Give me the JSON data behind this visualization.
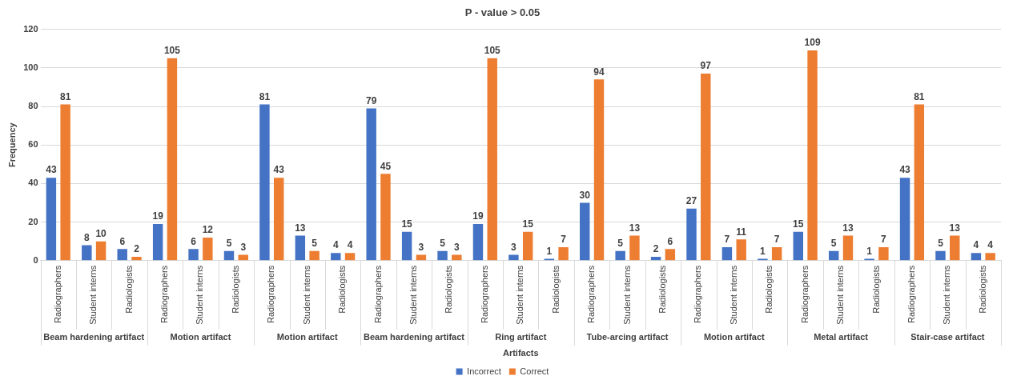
{
  "chart_data": {
    "type": "bar",
    "title": "P - value > 0.05",
    "xlabel": "Artifacts",
    "ylabel": "Frequency",
    "categories": [
      "Radiographers",
      "Student interns",
      "Radiologists",
      "Radiographers",
      "Student interns",
      "Radiologists",
      "Radiographers",
      "Student interns",
      "Radiologists",
      "Radiographers",
      "Student interns",
      "Radiologists",
      "Radiographers",
      "Student interns",
      "Radiologists",
      "Radiographers",
      "Student interns",
      "Radiologists",
      "Radiographers",
      "Student interns",
      "Radiologists",
      "Radiographers",
      "Student interns",
      "Radiologists",
      "Radiographers",
      "Student interns",
      "Radiologists"
    ],
    "series": [
      {
        "name": "Incorrect",
        "color": "#4472c4",
        "values": [
          43,
          8,
          6,
          19,
          6,
          5,
          81,
          13,
          4,
          79,
          15,
          5,
          19,
          3,
          1,
          30,
          5,
          2,
          27,
          7,
          1,
          15,
          5,
          1,
          43,
          5,
          4
        ]
      },
      {
        "name": "Correct",
        "color": "#ed7d31",
        "values": [
          81,
          10,
          2,
          105,
          12,
          3,
          43,
          5,
          4,
          45,
          3,
          3,
          105,
          15,
          7,
          94,
          13,
          6,
          97,
          11,
          7,
          109,
          13,
          7,
          81,
          13,
          4
        ]
      }
    ],
    "annotations": [
      "Beam hardening artifact",
      "Motion artifact",
      "Motion artifact",
      "Beam hardening artifact",
      "Ring artifact",
      "Tube-arcing artifact",
      "Motion artifact",
      "Metal artifact",
      "Stair-case artifact"
    ],
    "ylim": [
      0,
      120
    ],
    "yticks": [
      0,
      20,
      40,
      60,
      80,
      100,
      120
    ],
    "grid": "y",
    "legend": "bottom",
    "data_labels": true
  }
}
